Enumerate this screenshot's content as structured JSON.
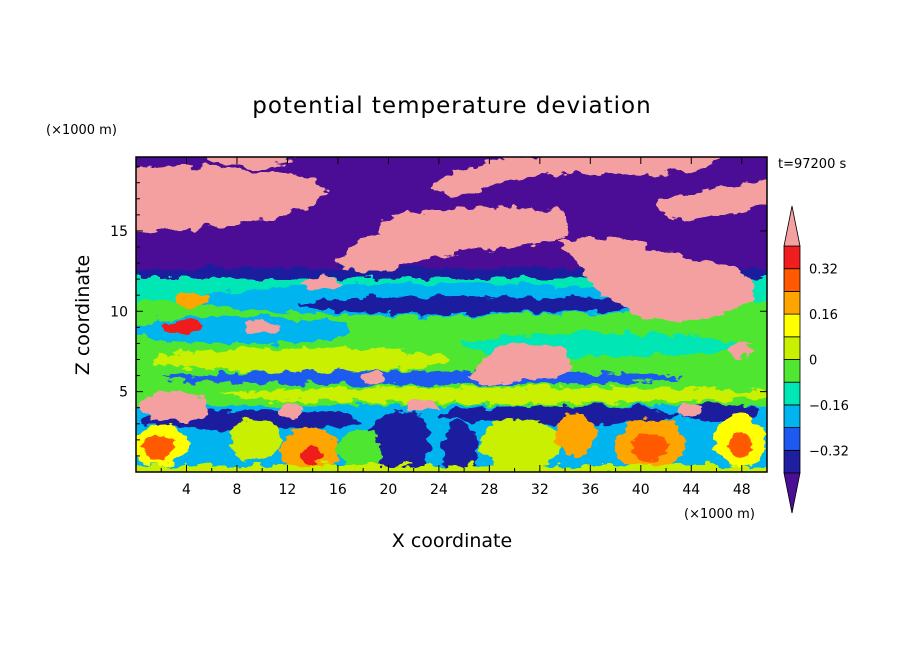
{
  "chart_data": {
    "type": "heatmap",
    "title": "potential temperature deviation",
    "xlabel": "X coordinate",
    "ylabel": "Z coordinate",
    "x_unit": "(×1000 m)",
    "y_unit": "(×1000 m)",
    "time_label": "t=97200 s",
    "xlim": [
      0,
      50
    ],
    "ylim": [
      0,
      19.6
    ],
    "x_ticks": [
      4,
      8,
      12,
      16,
      20,
      24,
      28,
      32,
      36,
      40,
      44,
      48
    ],
    "y_ticks": [
      5,
      10,
      15
    ],
    "colorbar": {
      "levels": [
        -0.4,
        -0.32,
        -0.24,
        -0.16,
        -0.08,
        0,
        0.08,
        0.16,
        0.24,
        0.32,
        0.4
      ],
      "labeled_levels": [
        {
          "value": 0.32,
          "label": "0.32"
        },
        {
          "value": 0.16,
          "label": "0.16"
        },
        {
          "value": 0,
          "label": "0"
        },
        {
          "value": -0.16,
          "label": "−0.16"
        },
        {
          "value": -0.32,
          "label": "−0.32"
        }
      ],
      "colors": [
        "#4b0f96",
        "#1e1e9e",
        "#1f5af0",
        "#00b4f0",
        "#00e6b4",
        "#50e632",
        "#c8f000",
        "#ffff00",
        "#ffa500",
        "#ff5a00",
        "#f01e1e",
        "#f5a0a0"
      ],
      "extend": "both"
    }
  }
}
